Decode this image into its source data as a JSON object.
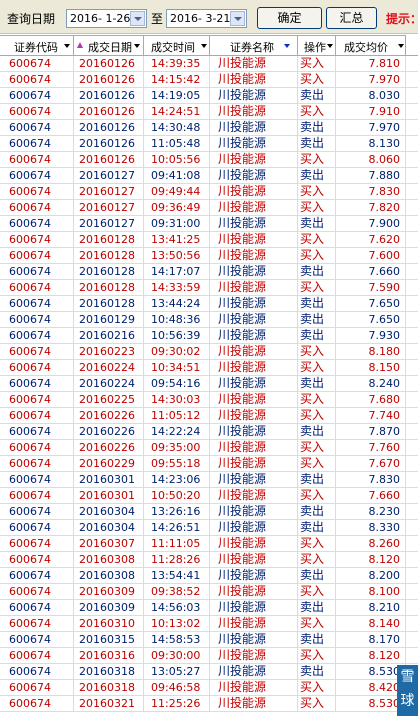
{
  "toolbar": {
    "query_date_label": "查询日期",
    "start_date": "2016- 1-26",
    "to_label": "至",
    "end_date": "2016- 3-21",
    "confirm_button": "确定",
    "summary_button": "汇总",
    "hint_text": "提示："
  },
  "columns": [
    "证券代码",
    "成交日期",
    "成交时间",
    "证券名称",
    "操作",
    "成交均价"
  ],
  "rows": [
    {
      "code": "600674",
      "date": "20160126",
      "time": "14:39:35",
      "name": "川投能源",
      "op": "买入",
      "price": "7.810",
      "side": "buy"
    },
    {
      "code": "600674",
      "date": "20160126",
      "time": "14:15:42",
      "name": "川投能源",
      "op": "买入",
      "price": "7.970",
      "side": "buy"
    },
    {
      "code": "600674",
      "date": "20160126",
      "time": "14:19:05",
      "name": "川投能源",
      "op": "卖出",
      "price": "8.030",
      "side": "sell"
    },
    {
      "code": "600674",
      "date": "20160126",
      "time": "14:24:51",
      "name": "川投能源",
      "op": "买入",
      "price": "7.910",
      "side": "buy"
    },
    {
      "code": "600674",
      "date": "20160126",
      "time": "14:30:48",
      "name": "川投能源",
      "op": "卖出",
      "price": "7.970",
      "side": "sell"
    },
    {
      "code": "600674",
      "date": "20160126",
      "time": "11:05:48",
      "name": "川投能源",
      "op": "卖出",
      "price": "8.130",
      "side": "sell"
    },
    {
      "code": "600674",
      "date": "20160126",
      "time": "10:05:56",
      "name": "川投能源",
      "op": "买入",
      "price": "8.060",
      "side": "buy"
    },
    {
      "code": "600674",
      "date": "20160127",
      "time": "09:41:08",
      "name": "川投能源",
      "op": "卖出",
      "price": "7.880",
      "side": "sell"
    },
    {
      "code": "600674",
      "date": "20160127",
      "time": "09:49:44",
      "name": "川投能源",
      "op": "买入",
      "price": "7.830",
      "side": "buy"
    },
    {
      "code": "600674",
      "date": "20160127",
      "time": "09:36:49",
      "name": "川投能源",
      "op": "买入",
      "price": "7.820",
      "side": "buy"
    },
    {
      "code": "600674",
      "date": "20160127",
      "time": "09:31:00",
      "name": "川投能源",
      "op": "卖出",
      "price": "7.900",
      "side": "sell"
    },
    {
      "code": "600674",
      "date": "20160128",
      "time": "13:41:25",
      "name": "川投能源",
      "op": "买入",
      "price": "7.620",
      "side": "buy"
    },
    {
      "code": "600674",
      "date": "20160128",
      "time": "13:50:56",
      "name": "川投能源",
      "op": "买入",
      "price": "7.600",
      "side": "buy"
    },
    {
      "code": "600674",
      "date": "20160128",
      "time": "14:17:07",
      "name": "川投能源",
      "op": "卖出",
      "price": "7.660",
      "side": "sell"
    },
    {
      "code": "600674",
      "date": "20160128",
      "time": "14:33:59",
      "name": "川投能源",
      "op": "买入",
      "price": "7.590",
      "side": "buy"
    },
    {
      "code": "600674",
      "date": "20160128",
      "time": "13:44:24",
      "name": "川投能源",
      "op": "卖出",
      "price": "7.650",
      "side": "sell"
    },
    {
      "code": "600674",
      "date": "20160129",
      "time": "10:48:36",
      "name": "川投能源",
      "op": "卖出",
      "price": "7.650",
      "side": "sell"
    },
    {
      "code": "600674",
      "date": "20160216",
      "time": "10:56:39",
      "name": "川投能源",
      "op": "卖出",
      "price": "7.930",
      "side": "sell"
    },
    {
      "code": "600674",
      "date": "20160223",
      "time": "09:30:02",
      "name": "川投能源",
      "op": "买入",
      "price": "8.180",
      "side": "buy"
    },
    {
      "code": "600674",
      "date": "20160224",
      "time": "10:34:51",
      "name": "川投能源",
      "op": "买入",
      "price": "8.150",
      "side": "buy"
    },
    {
      "code": "600674",
      "date": "20160224",
      "time": "09:54:16",
      "name": "川投能源",
      "op": "卖出",
      "price": "8.240",
      "side": "sell"
    },
    {
      "code": "600674",
      "date": "20160225",
      "time": "14:30:03",
      "name": "川投能源",
      "op": "买入",
      "price": "7.680",
      "side": "buy"
    },
    {
      "code": "600674",
      "date": "20160226",
      "time": "11:05:12",
      "name": "川投能源",
      "op": "买入",
      "price": "7.740",
      "side": "buy"
    },
    {
      "code": "600674",
      "date": "20160226",
      "time": "14:22:24",
      "name": "川投能源",
      "op": "卖出",
      "price": "7.870",
      "side": "sell"
    },
    {
      "code": "600674",
      "date": "20160226",
      "time": "09:35:00",
      "name": "川投能源",
      "op": "买入",
      "price": "7.760",
      "side": "buy"
    },
    {
      "code": "600674",
      "date": "20160229",
      "time": "09:55:18",
      "name": "川投能源",
      "op": "买入",
      "price": "7.670",
      "side": "buy"
    },
    {
      "code": "600674",
      "date": "20160301",
      "time": "14:23:06",
      "name": "川投能源",
      "op": "卖出",
      "price": "7.830",
      "side": "sell"
    },
    {
      "code": "600674",
      "date": "20160301",
      "time": "10:50:20",
      "name": "川投能源",
      "op": "买入",
      "price": "7.660",
      "side": "buy"
    },
    {
      "code": "600674",
      "date": "20160304",
      "time": "13:26:16",
      "name": "川投能源",
      "op": "卖出",
      "price": "8.230",
      "side": "sell"
    },
    {
      "code": "600674",
      "date": "20160304",
      "time": "14:26:51",
      "name": "川投能源",
      "op": "卖出",
      "price": "8.330",
      "side": "sell"
    },
    {
      "code": "600674",
      "date": "20160307",
      "time": "11:11:05",
      "name": "川投能源",
      "op": "买入",
      "price": "8.260",
      "side": "buy"
    },
    {
      "code": "600674",
      "date": "20160308",
      "time": "11:28:26",
      "name": "川投能源",
      "op": "买入",
      "price": "8.120",
      "side": "buy"
    },
    {
      "code": "600674",
      "date": "20160308",
      "time": "13:54:41",
      "name": "川投能源",
      "op": "卖出",
      "price": "8.200",
      "side": "sell"
    },
    {
      "code": "600674",
      "date": "20160309",
      "time": "09:38:52",
      "name": "川投能源",
      "op": "买入",
      "price": "8.100",
      "side": "buy"
    },
    {
      "code": "600674",
      "date": "20160309",
      "time": "14:56:03",
      "name": "川投能源",
      "op": "卖出",
      "price": "8.210",
      "side": "sell"
    },
    {
      "code": "600674",
      "date": "20160310",
      "time": "10:13:02",
      "name": "川投能源",
      "op": "买入",
      "price": "8.140",
      "side": "buy"
    },
    {
      "code": "600674",
      "date": "20160315",
      "time": "14:58:53",
      "name": "川投能源",
      "op": "卖出",
      "price": "8.170",
      "side": "sell"
    },
    {
      "code": "600674",
      "date": "20160316",
      "time": "09:30:00",
      "name": "川投能源",
      "op": "买入",
      "price": "8.120",
      "side": "buy"
    },
    {
      "code": "600674",
      "date": "20160318",
      "time": "13:05:27",
      "name": "川投能源",
      "op": "卖出",
      "price": "8.530",
      "side": "sell"
    },
    {
      "code": "600674",
      "date": "20160318",
      "time": "09:46:58",
      "name": "川投能源",
      "op": "买入",
      "price": "8.420",
      "side": "buy"
    },
    {
      "code": "600674",
      "date": "20160321",
      "time": "11:25:26",
      "name": "川投能源",
      "op": "买入",
      "price": "8.530",
      "side": "buy"
    }
  ],
  "watermark_text": "雪球",
  "colors": {
    "buy": "#c00000",
    "sell": "#00206e",
    "toolbar": "#ece9d8",
    "hint": "#e0101e"
  }
}
